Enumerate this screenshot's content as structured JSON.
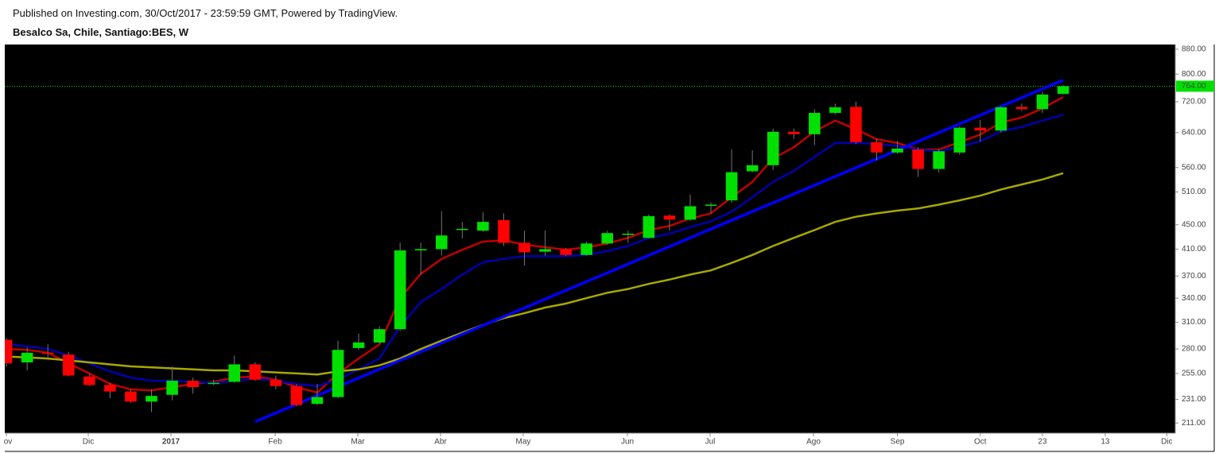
{
  "header": {
    "published": "Published on Investing.com, 30/Oct/2017 - 23:59:59 GMT, Powered by TradingView.",
    "symbol": "Besalco Sa, Chile, Santiago:BES, W"
  },
  "chart_data": {
    "type": "candlestick",
    "log": true,
    "grid": false,
    "up_color": "#00e000",
    "down_color": "#ff0000",
    "x": [
      0,
      1,
      2,
      3,
      4,
      5,
      6,
      7,
      8,
      9,
      10,
      11,
      12,
      13,
      14,
      15,
      16,
      17,
      18,
      19,
      20,
      21,
      22,
      23,
      24,
      25,
      26,
      27,
      28,
      29,
      30,
      31,
      32,
      33,
      34,
      35,
      36,
      37,
      38,
      39,
      40,
      41,
      42,
      43,
      44,
      45,
      46,
      47,
      48,
      49,
      50,
      51
    ],
    "open": [
      290,
      266,
      276,
      274,
      252,
      244,
      238,
      229,
      235,
      248,
      246,
      247,
      264,
      249,
      243,
      227,
      233,
      281,
      287,
      302,
      408,
      410,
      442,
      440,
      458,
      420,
      406,
      410,
      401,
      419,
      433,
      428,
      466,
      459,
      484,
      494,
      552,
      565,
      642,
      636,
      690,
      706,
      617,
      593,
      600,
      557,
      593,
      652,
      645,
      706,
      700,
      742
    ],
    "high": [
      292,
      282,
      285,
      277,
      254,
      246,
      240,
      240,
      262,
      251,
      249,
      273,
      266,
      253,
      245,
      245,
      289,
      297,
      305,
      420,
      420,
      474,
      455,
      472,
      470,
      440,
      440,
      412,
      422,
      440,
      440,
      468,
      468,
      505,
      490,
      600,
      598,
      650,
      650,
      700,
      715,
      720,
      625,
      620,
      605,
      600,
      655,
      672,
      708,
      715,
      748,
      768
    ],
    "low": [
      262,
      258,
      268,
      252,
      243,
      232,
      228,
      220,
      230,
      236,
      244,
      246,
      248,
      240,
      225,
      226,
      232,
      279,
      286,
      300,
      372,
      400,
      427,
      438,
      415,
      385,
      400,
      399,
      400,
      417,
      420,
      427,
      440,
      457,
      470,
      490,
      550,
      555,
      625,
      610,
      686,
      612,
      575,
      590,
      540,
      550,
      588,
      618,
      640,
      695,
      690,
      740
    ],
    "close": [
      265,
      276,
      275,
      253,
      244,
      238,
      229,
      234,
      248,
      242,
      246,
      264,
      249,
      243,
      226,
      233,
      279,
      287,
      302,
      408,
      410,
      432,
      443,
      455,
      420,
      405,
      410,
      401,
      419,
      436,
      435,
      465,
      459,
      483,
      486,
      550,
      565,
      642,
      636,
      690,
      705,
      617,
      593,
      602,
      557,
      596,
      652,
      645,
      705,
      700,
      740,
      764
    ],
    "lines": [
      {
        "color": "#c00000",
        "values": [
          280,
          279,
          276,
          265,
          255,
          245,
          240,
          239,
          242,
          245,
          247,
          251,
          252,
          249,
          242,
          237,
          255,
          270,
          285,
          340,
          373,
          395,
          409,
          422,
          424,
          417,
          413,
          409,
          413,
          419,
          428,
          441,
          448,
          461,
          470,
          500,
          530,
          580,
          605,
          643,
          670,
          648,
          624,
          615,
          600,
          600,
          617,
          635,
          665,
          678,
          702,
          733
        ]
      },
      {
        "color": "#0000b0",
        "values": [
          285,
          283,
          280,
          273,
          265,
          257,
          251,
          248,
          248,
          247,
          246,
          248,
          250,
          248,
          245,
          243,
          249,
          259,
          270,
          305,
          335,
          352,
          372,
          390,
          395,
          399,
          399,
          399,
          401,
          407,
          415,
          428,
          435,
          446,
          456,
          473,
          500,
          530,
          553,
          583,
          615,
          615,
          613,
          608,
          600,
          596,
          606,
          619,
          643,
          654,
          670,
          685
        ]
      },
      {
        "color": "#a8a800",
        "values": [
          272,
          271,
          270,
          268,
          266,
          264,
          262,
          261,
          260,
          259,
          258,
          258,
          257,
          256,
          255,
          254,
          257,
          259,
          263,
          270,
          280,
          289,
          298,
          307,
          315,
          321,
          328,
          333,
          340,
          347,
          352,
          359,
          365,
          372,
          378,
          389,
          401,
          415,
          428,
          441,
          455,
          464,
          470,
          475,
          479,
          486,
          494,
          503,
          515,
          525,
          535,
          548
        ]
      }
    ],
    "trendline": {
      "color": "#0000ff",
      "x": [
        12,
        51
      ],
      "values": [
        212,
        782
      ]
    },
    "price_line": {
      "value": 764,
      "label": "764.00",
      "color": "#00e000"
    },
    "xlim": [
      -0.08,
      56.41
    ],
    "xticks": [
      {
        "value": 0,
        "label": "ov"
      },
      {
        "value": 3.95,
        "label": "Dic"
      },
      {
        "value": 7.94,
        "label": "2017"
      },
      {
        "value": 12.97,
        "label": "Feb"
      },
      {
        "value": 16.96,
        "label": "Mar"
      },
      {
        "value": 20.95,
        "label": "Abr"
      },
      {
        "value": 24.94,
        "label": "May"
      },
      {
        "value": 29.97,
        "label": "Jun"
      },
      {
        "value": 33.96,
        "label": "Jul"
      },
      {
        "value": 38.95,
        "label": "Ago"
      },
      {
        "value": 43,
        "label": "Sep"
      },
      {
        "value": 47,
        "label": "Oct"
      },
      {
        "value": 50,
        "label": "23"
      },
      {
        "value": 53.03,
        "label": "13"
      },
      {
        "value": 56,
        "label": "Dic"
      }
    ],
    "ylim": [
      203,
      896
    ],
    "yticks": [
      {
        "value": 211,
        "label": "211.00"
      },
      {
        "value": 231,
        "label": "231.00"
      },
      {
        "value": 255,
        "label": "255.00"
      },
      {
        "value": 280,
        "label": "280.00"
      },
      {
        "value": 310,
        "label": "310.00"
      },
      {
        "value": 340,
        "label": "340.00"
      },
      {
        "value": 370,
        "label": "370.00"
      },
      {
        "value": 410,
        "label": "410.00"
      },
      {
        "value": 450,
        "label": "450.00"
      },
      {
        "value": 510,
        "label": "510.00"
      },
      {
        "value": 560,
        "label": "560.00"
      },
      {
        "value": 640,
        "label": "640.00"
      },
      {
        "value": 720,
        "label": "720.00"
      },
      {
        "value": 800,
        "label": "800.00"
      },
      {
        "value": 880,
        "label": "880.00"
      }
    ]
  }
}
